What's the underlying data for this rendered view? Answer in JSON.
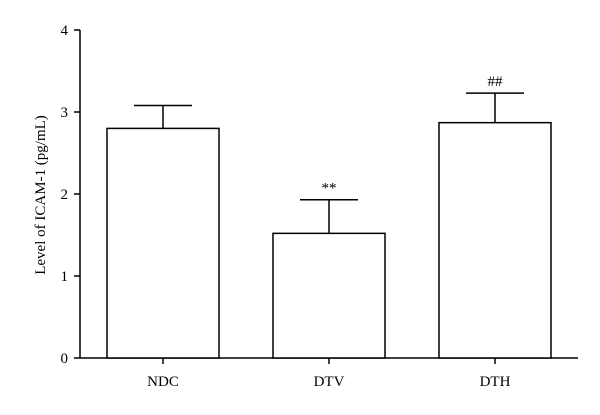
{
  "chart_data": {
    "type": "bar",
    "title": "",
    "xlabel": "",
    "ylabel": "Level of ICAM-1 (pg/mL)",
    "ylim": [
      0,
      4
    ],
    "yticks": [
      0,
      1,
      2,
      3,
      4
    ],
    "categories": [
      "NDC",
      "DTV",
      "DTH"
    ],
    "values": [
      2.8,
      1.52,
      2.87
    ],
    "error": [
      0.28,
      0.41,
      0.36
    ],
    "annotations": [
      "",
      "**",
      "##"
    ],
    "grid": false,
    "legend": "none"
  }
}
